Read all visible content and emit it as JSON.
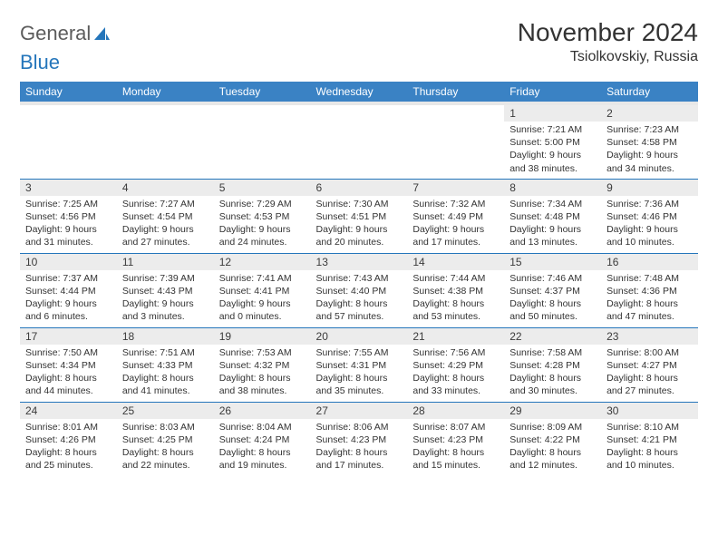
{
  "logo": {
    "text1": "General",
    "text2": "Blue"
  },
  "title": "November 2024",
  "location": "Tsiolkovskiy, Russia",
  "colors": {
    "header_bg": "#3a82c4",
    "header_underline": "#e8e8e8",
    "cell_border": "#2576bb",
    "daynum_bg": "#ececec",
    "logo_gray": "#5c5c5c",
    "logo_blue": "#2576bb"
  },
  "weekdays": [
    "Sunday",
    "Monday",
    "Tuesday",
    "Wednesday",
    "Thursday",
    "Friday",
    "Saturday"
  ],
  "weeks": [
    [
      {
        "n": "",
        "sr": "",
        "ss": "",
        "dl": ""
      },
      {
        "n": "",
        "sr": "",
        "ss": "",
        "dl": ""
      },
      {
        "n": "",
        "sr": "",
        "ss": "",
        "dl": ""
      },
      {
        "n": "",
        "sr": "",
        "ss": "",
        "dl": ""
      },
      {
        "n": "",
        "sr": "",
        "ss": "",
        "dl": ""
      },
      {
        "n": "1",
        "sr": "Sunrise: 7:21 AM",
        "ss": "Sunset: 5:00 PM",
        "dl": "Daylight: 9 hours and 38 minutes."
      },
      {
        "n": "2",
        "sr": "Sunrise: 7:23 AM",
        "ss": "Sunset: 4:58 PM",
        "dl": "Daylight: 9 hours and 34 minutes."
      }
    ],
    [
      {
        "n": "3",
        "sr": "Sunrise: 7:25 AM",
        "ss": "Sunset: 4:56 PM",
        "dl": "Daylight: 9 hours and 31 minutes."
      },
      {
        "n": "4",
        "sr": "Sunrise: 7:27 AM",
        "ss": "Sunset: 4:54 PM",
        "dl": "Daylight: 9 hours and 27 minutes."
      },
      {
        "n": "5",
        "sr": "Sunrise: 7:29 AM",
        "ss": "Sunset: 4:53 PM",
        "dl": "Daylight: 9 hours and 24 minutes."
      },
      {
        "n": "6",
        "sr": "Sunrise: 7:30 AM",
        "ss": "Sunset: 4:51 PM",
        "dl": "Daylight: 9 hours and 20 minutes."
      },
      {
        "n": "7",
        "sr": "Sunrise: 7:32 AM",
        "ss": "Sunset: 4:49 PM",
        "dl": "Daylight: 9 hours and 17 minutes."
      },
      {
        "n": "8",
        "sr": "Sunrise: 7:34 AM",
        "ss": "Sunset: 4:48 PM",
        "dl": "Daylight: 9 hours and 13 minutes."
      },
      {
        "n": "9",
        "sr": "Sunrise: 7:36 AM",
        "ss": "Sunset: 4:46 PM",
        "dl": "Daylight: 9 hours and 10 minutes."
      }
    ],
    [
      {
        "n": "10",
        "sr": "Sunrise: 7:37 AM",
        "ss": "Sunset: 4:44 PM",
        "dl": "Daylight: 9 hours and 6 minutes."
      },
      {
        "n": "11",
        "sr": "Sunrise: 7:39 AM",
        "ss": "Sunset: 4:43 PM",
        "dl": "Daylight: 9 hours and 3 minutes."
      },
      {
        "n": "12",
        "sr": "Sunrise: 7:41 AM",
        "ss": "Sunset: 4:41 PM",
        "dl": "Daylight: 9 hours and 0 minutes."
      },
      {
        "n": "13",
        "sr": "Sunrise: 7:43 AM",
        "ss": "Sunset: 4:40 PM",
        "dl": "Daylight: 8 hours and 57 minutes."
      },
      {
        "n": "14",
        "sr": "Sunrise: 7:44 AM",
        "ss": "Sunset: 4:38 PM",
        "dl": "Daylight: 8 hours and 53 minutes."
      },
      {
        "n": "15",
        "sr": "Sunrise: 7:46 AM",
        "ss": "Sunset: 4:37 PM",
        "dl": "Daylight: 8 hours and 50 minutes."
      },
      {
        "n": "16",
        "sr": "Sunrise: 7:48 AM",
        "ss": "Sunset: 4:36 PM",
        "dl": "Daylight: 8 hours and 47 minutes."
      }
    ],
    [
      {
        "n": "17",
        "sr": "Sunrise: 7:50 AM",
        "ss": "Sunset: 4:34 PM",
        "dl": "Daylight: 8 hours and 44 minutes."
      },
      {
        "n": "18",
        "sr": "Sunrise: 7:51 AM",
        "ss": "Sunset: 4:33 PM",
        "dl": "Daylight: 8 hours and 41 minutes."
      },
      {
        "n": "19",
        "sr": "Sunrise: 7:53 AM",
        "ss": "Sunset: 4:32 PM",
        "dl": "Daylight: 8 hours and 38 minutes."
      },
      {
        "n": "20",
        "sr": "Sunrise: 7:55 AM",
        "ss": "Sunset: 4:31 PM",
        "dl": "Daylight: 8 hours and 35 minutes."
      },
      {
        "n": "21",
        "sr": "Sunrise: 7:56 AM",
        "ss": "Sunset: 4:29 PM",
        "dl": "Daylight: 8 hours and 33 minutes."
      },
      {
        "n": "22",
        "sr": "Sunrise: 7:58 AM",
        "ss": "Sunset: 4:28 PM",
        "dl": "Daylight: 8 hours and 30 minutes."
      },
      {
        "n": "23",
        "sr": "Sunrise: 8:00 AM",
        "ss": "Sunset: 4:27 PM",
        "dl": "Daylight: 8 hours and 27 minutes."
      }
    ],
    [
      {
        "n": "24",
        "sr": "Sunrise: 8:01 AM",
        "ss": "Sunset: 4:26 PM",
        "dl": "Daylight: 8 hours and 25 minutes."
      },
      {
        "n": "25",
        "sr": "Sunrise: 8:03 AM",
        "ss": "Sunset: 4:25 PM",
        "dl": "Daylight: 8 hours and 22 minutes."
      },
      {
        "n": "26",
        "sr": "Sunrise: 8:04 AM",
        "ss": "Sunset: 4:24 PM",
        "dl": "Daylight: 8 hours and 19 minutes."
      },
      {
        "n": "27",
        "sr": "Sunrise: 8:06 AM",
        "ss": "Sunset: 4:23 PM",
        "dl": "Daylight: 8 hours and 17 minutes."
      },
      {
        "n": "28",
        "sr": "Sunrise: 8:07 AM",
        "ss": "Sunset: 4:23 PM",
        "dl": "Daylight: 8 hours and 15 minutes."
      },
      {
        "n": "29",
        "sr": "Sunrise: 8:09 AM",
        "ss": "Sunset: 4:22 PM",
        "dl": "Daylight: 8 hours and 12 minutes."
      },
      {
        "n": "30",
        "sr": "Sunrise: 8:10 AM",
        "ss": "Sunset: 4:21 PM",
        "dl": "Daylight: 8 hours and 10 minutes."
      }
    ]
  ]
}
